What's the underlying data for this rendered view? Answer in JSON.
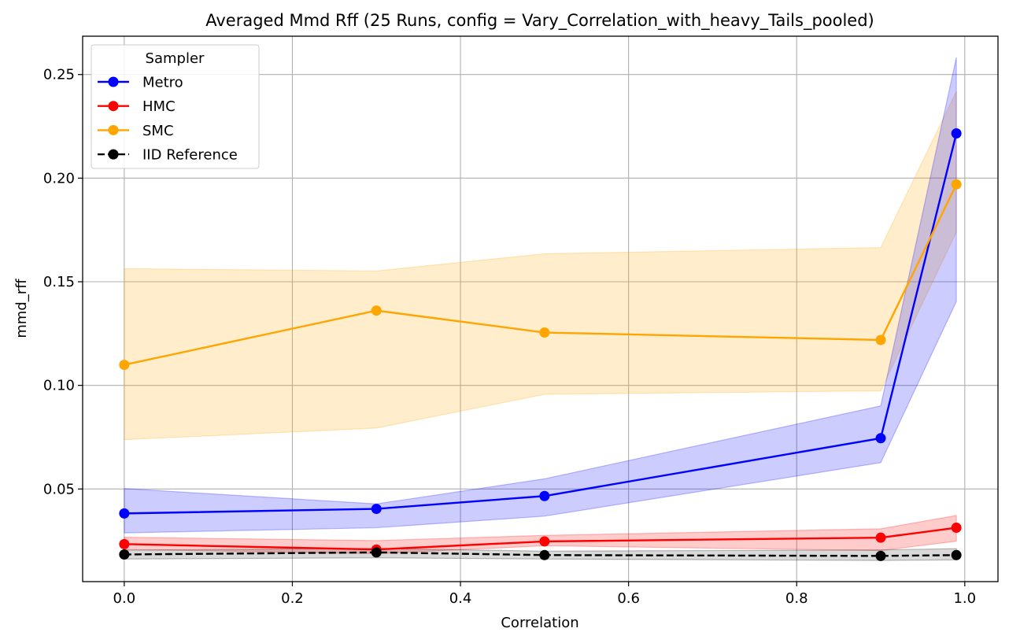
{
  "chart_data": {
    "type": "line",
    "title": "Averaged Mmd Rff (25 Runs, config = Vary_Correlation_with_heavy_Tails_pooled)",
    "xlabel": "Correlation",
    "ylabel": "mmd_rff",
    "xlim": [
      -0.0495,
      1.0395
    ],
    "ylim": [
      0.0053,
      0.2685
    ],
    "xticks": [
      0.0,
      0.2,
      0.4,
      0.6,
      0.8,
      1.0
    ],
    "xtick_labels": [
      "0.0",
      "0.2",
      "0.4",
      "0.6",
      "0.8",
      "1.0"
    ],
    "yticks": [
      0.05,
      0.1,
      0.15,
      0.2,
      0.25
    ],
    "ytick_labels": [
      "0.05",
      "0.10",
      "0.15",
      "0.20",
      "0.25"
    ],
    "grid": true,
    "legend": {
      "title": "Sampler",
      "position": "top-left"
    },
    "x": [
      0.0,
      0.3,
      0.5,
      0.9,
      0.99
    ],
    "series": [
      {
        "name": "Metro",
        "color": "#0000ff",
        "values": [
          0.0382,
          0.0404,
          0.0466,
          0.0745,
          0.2216
        ],
        "lower": [
          0.0288,
          0.0313,
          0.0369,
          0.0627,
          0.1405
        ],
        "upper": [
          0.0502,
          0.0428,
          0.0549,
          0.0901,
          0.2583
        ],
        "dashed": false
      },
      {
        "name": "HMC",
        "color": "#ff0000",
        "values": [
          0.0234,
          0.0208,
          0.0247,
          0.0265,
          0.0313
        ],
        "lower": [
          0.0208,
          0.0188,
          0.0226,
          0.0203,
          0.0248
        ],
        "upper": [
          0.0267,
          0.0251,
          0.0276,
          0.0308,
          0.0372
        ],
        "dashed": false
      },
      {
        "name": "SMC",
        "color": "#ffa500",
        "values": [
          0.1099,
          0.1361,
          0.1255,
          0.1219,
          0.197
        ],
        "lower": [
          0.0738,
          0.0794,
          0.0957,
          0.0974,
          0.174
        ],
        "upper": [
          0.1563,
          0.1552,
          0.1635,
          0.1665,
          0.2418
        ],
        "dashed": false
      },
      {
        "name": "IID Reference",
        "color": "#000000",
        "values": [
          0.0184,
          0.0194,
          0.0181,
          0.0177,
          0.0181
        ],
        "lower": [
          0.0162,
          0.0168,
          0.0162,
          0.0155,
          0.0158
        ],
        "upper": [
          0.0205,
          0.0213,
          0.02,
          0.0206,
          0.0212
        ],
        "dashed": true
      }
    ]
  }
}
